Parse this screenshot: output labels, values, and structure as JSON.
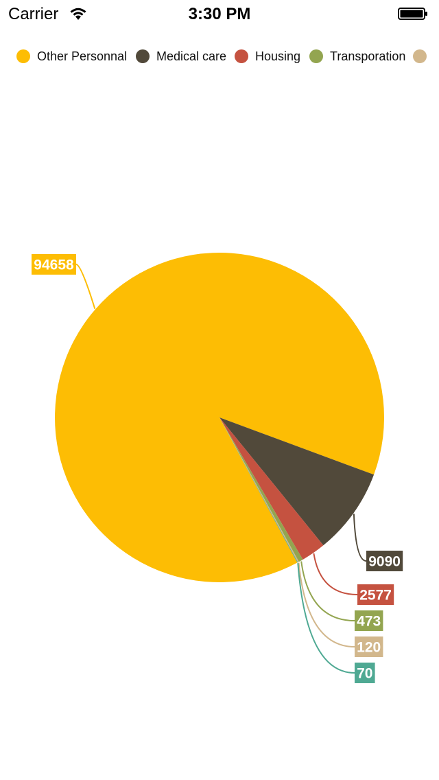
{
  "status_bar": {
    "carrier": "Carrier",
    "time": "3:30 PM"
  },
  "chart_data": {
    "type": "pie",
    "title": "",
    "legend_position": "top",
    "slices": [
      {
        "name": "Other Personnal",
        "value": 94658,
        "color": "#FDBD04"
      },
      {
        "name": "Medical care",
        "value": 9090,
        "color": "#51493A"
      },
      {
        "name": "Housing",
        "value": 2577,
        "color": "#C55240"
      },
      {
        "name": "Transporation",
        "value": 473,
        "color": "#93A550"
      },
      {
        "name": "",
        "value": 120,
        "color": "#D2B78C"
      },
      {
        "name": "",
        "value": 70,
        "color": "#4FA993"
      }
    ],
    "data_labels": [
      "94658",
      "9090",
      "2577",
      "473",
      "120",
      "70"
    ]
  }
}
